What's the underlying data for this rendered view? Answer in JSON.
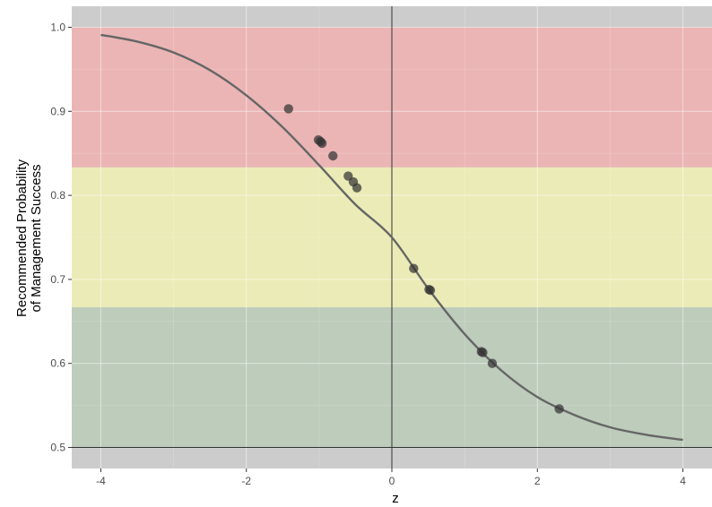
{
  "chart_data": {
    "type": "line",
    "title": "",
    "xlabel": "z",
    "ylabel_lines": [
      "Recommended Probability",
      "of Management Success"
    ],
    "xlim": [
      -4.4,
      4.4
    ],
    "ylim": [
      0.475,
      1.025
    ],
    "x_ticks": [
      {
        "value": -4,
        "label": "-4"
      },
      {
        "value": -2,
        "label": "-2"
      },
      {
        "value": 0,
        "label": "0"
      },
      {
        "value": 2,
        "label": "2"
      },
      {
        "value": 4,
        "label": "4"
      }
    ],
    "y_ticks": [
      {
        "value": 0.5,
        "label": "0.5"
      },
      {
        "value": 0.6,
        "label": "0.6"
      },
      {
        "value": 0.7,
        "label": "0.7"
      },
      {
        "value": 0.8,
        "label": "0.8"
      },
      {
        "value": 0.9,
        "label": "0.9"
      },
      {
        "value": 1.0,
        "label": "1.0"
      }
    ],
    "bands": [
      {
        "ymin": 0.8333,
        "ymax": 1.0,
        "color": "#ebb5b5"
      },
      {
        "ymin": 0.6667,
        "ymax": 0.8333,
        "color": "#ebebb7"
      },
      {
        "ymin": 0.5,
        "ymax": 0.6667,
        "color": "#bdccbb"
      }
    ],
    "reference_lines": {
      "vline_x": 0,
      "hline_y": 0.5
    },
    "curve": {
      "x_range": [
        -4,
        4
      ],
      "color": "#666666",
      "points": [
        [
          -4.0,
          0.991
        ],
        [
          -3.5,
          0.983
        ],
        [
          -3.0,
          0.97
        ],
        [
          -2.5,
          0.949
        ],
        [
          -2.0,
          0.919
        ],
        [
          -1.5,
          0.881
        ],
        [
          -1.0,
          0.836
        ],
        [
          -0.5,
          0.789
        ],
        [
          0.0,
          0.75
        ],
        [
          0.5,
          0.689
        ],
        [
          1.0,
          0.635
        ],
        [
          1.5,
          0.592
        ],
        [
          2.0,
          0.56
        ],
        [
          2.5,
          0.539
        ],
        [
          3.0,
          0.524
        ],
        [
          3.5,
          0.515
        ],
        [
          4.0,
          0.509
        ]
      ]
    },
    "points": {
      "color": "#333333",
      "values": [
        {
          "x": -1.42,
          "y": 0.903
        },
        {
          "x": -1.01,
          "y": 0.866
        },
        {
          "x": -0.98,
          "y": 0.864
        },
        {
          "x": -0.96,
          "y": 0.862
        },
        {
          "x": -0.81,
          "y": 0.847
        },
        {
          "x": -0.6,
          "y": 0.823
        },
        {
          "x": -0.53,
          "y": 0.816
        },
        {
          "x": -0.48,
          "y": 0.809
        },
        {
          "x": 0.3,
          "y": 0.713
        },
        {
          "x": 0.51,
          "y": 0.688
        },
        {
          "x": 0.53,
          "y": 0.687
        },
        {
          "x": 1.23,
          "y": 0.614
        },
        {
          "x": 1.25,
          "y": 0.613
        },
        {
          "x": 1.38,
          "y": 0.6
        },
        {
          "x": 2.3,
          "y": 0.546
        }
      ]
    },
    "panel_background": "#cccccc",
    "grid": true,
    "legend": "none"
  }
}
